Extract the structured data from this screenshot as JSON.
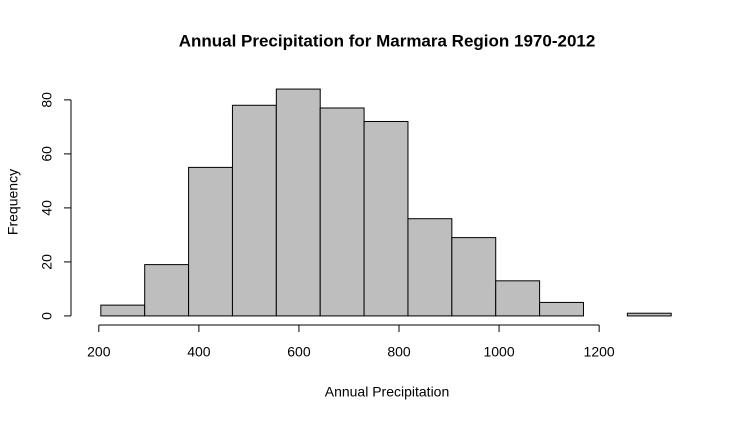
{
  "chart_data": {
    "type": "histogram",
    "title": "Annual Precipitation for Marmara Region 1970-2012",
    "x_label": "Annual Precipitation",
    "y_label": "Frequency",
    "bins": [
      204,
      291.7,
      379.4,
      467.1,
      554.8,
      642.5,
      730.2,
      817.9,
      905.6,
      993.3,
      1081,
      1168.7,
      1256.4,
      1344
    ],
    "counts": [
      4,
      19,
      55,
      78,
      84,
      77,
      72,
      36,
      29,
      13,
      5,
      0,
      1
    ],
    "color": "#bebebe",
    "xlim": [
      158.4,
      1389.6
    ],
    "ylim": [
      -3.36,
      87.36
    ],
    "xticks": [
      200,
      400,
      600,
      800,
      1000,
      1200
    ],
    "yticks": [
      0,
      20,
      40,
      60,
      80
    ]
  }
}
